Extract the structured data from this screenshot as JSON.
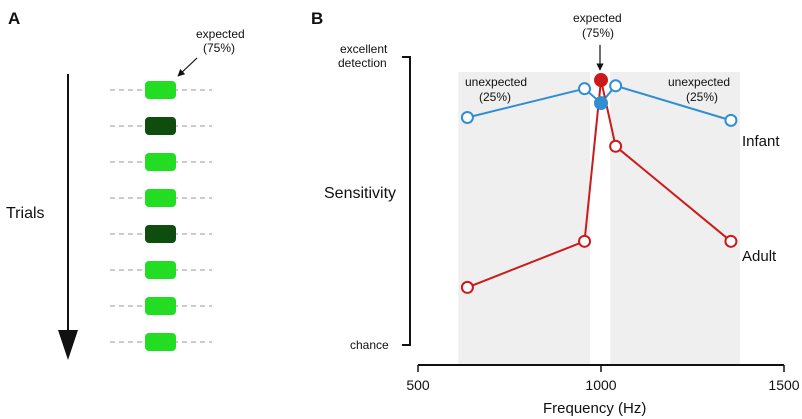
{
  "panels": {
    "a": {
      "letter": "A",
      "axis_label": "Trials",
      "expected_line1": "expected",
      "expected_line2": "(75%)",
      "trials": [
        "expected",
        "unexpected",
        "expected",
        "expected",
        "unexpected",
        "expected",
        "expected",
        "expected"
      ]
    },
    "b": {
      "letter": "B",
      "top_expected_line1": "expected",
      "top_expected_line2": "(75%)",
      "left_unexpected_line1": "unexpected",
      "left_unexpected_line2": "(25%)",
      "right_unexpected_line1": "unexpected",
      "right_unexpected_line2": "(25%)"
    }
  },
  "colors": {
    "expected_green": "#22dd22",
    "unexpected_green": "#0e4d0e",
    "infant_blue": "#2f8fd0",
    "adult_red": "#cc1a1a",
    "band_gray": "#efefef"
  },
  "chart_data": {
    "type": "line",
    "xlabel": "Frequency (Hz)",
    "ylabel": "Sensitivity",
    "x_ticks": [
      500,
      1000,
      1500
    ],
    "xlim": [
      500,
      1500
    ],
    "ylim": [
      0,
      1
    ],
    "y_tick_labels": {
      "top_line1": "excellent",
      "top_line2": "detection",
      "bottom": "chance"
    },
    "unexpected_bands": [
      [
        610,
        970
      ],
      [
        1025,
        1380
      ]
    ],
    "series": [
      {
        "name": "Infant",
        "color": "#2f8fd0",
        "points": [
          {
            "x": 635,
            "y": 0.79,
            "filled": false
          },
          {
            "x": 955,
            "y": 0.89,
            "filled": false
          },
          {
            "x": 1000,
            "y": 0.84,
            "filled": true
          },
          {
            "x": 1040,
            "y": 0.9,
            "filled": false
          },
          {
            "x": 1355,
            "y": 0.78,
            "filled": false
          }
        ]
      },
      {
        "name": "Adult",
        "color": "#cc1a1a",
        "points": [
          {
            "x": 635,
            "y": 0.2,
            "filled": false
          },
          {
            "x": 955,
            "y": 0.36,
            "filled": false
          },
          {
            "x": 1000,
            "y": 0.92,
            "filled": true
          },
          {
            "x": 1040,
            "y": 0.69,
            "filled": false
          },
          {
            "x": 1355,
            "y": 0.36,
            "filled": false
          }
        ]
      }
    ]
  }
}
